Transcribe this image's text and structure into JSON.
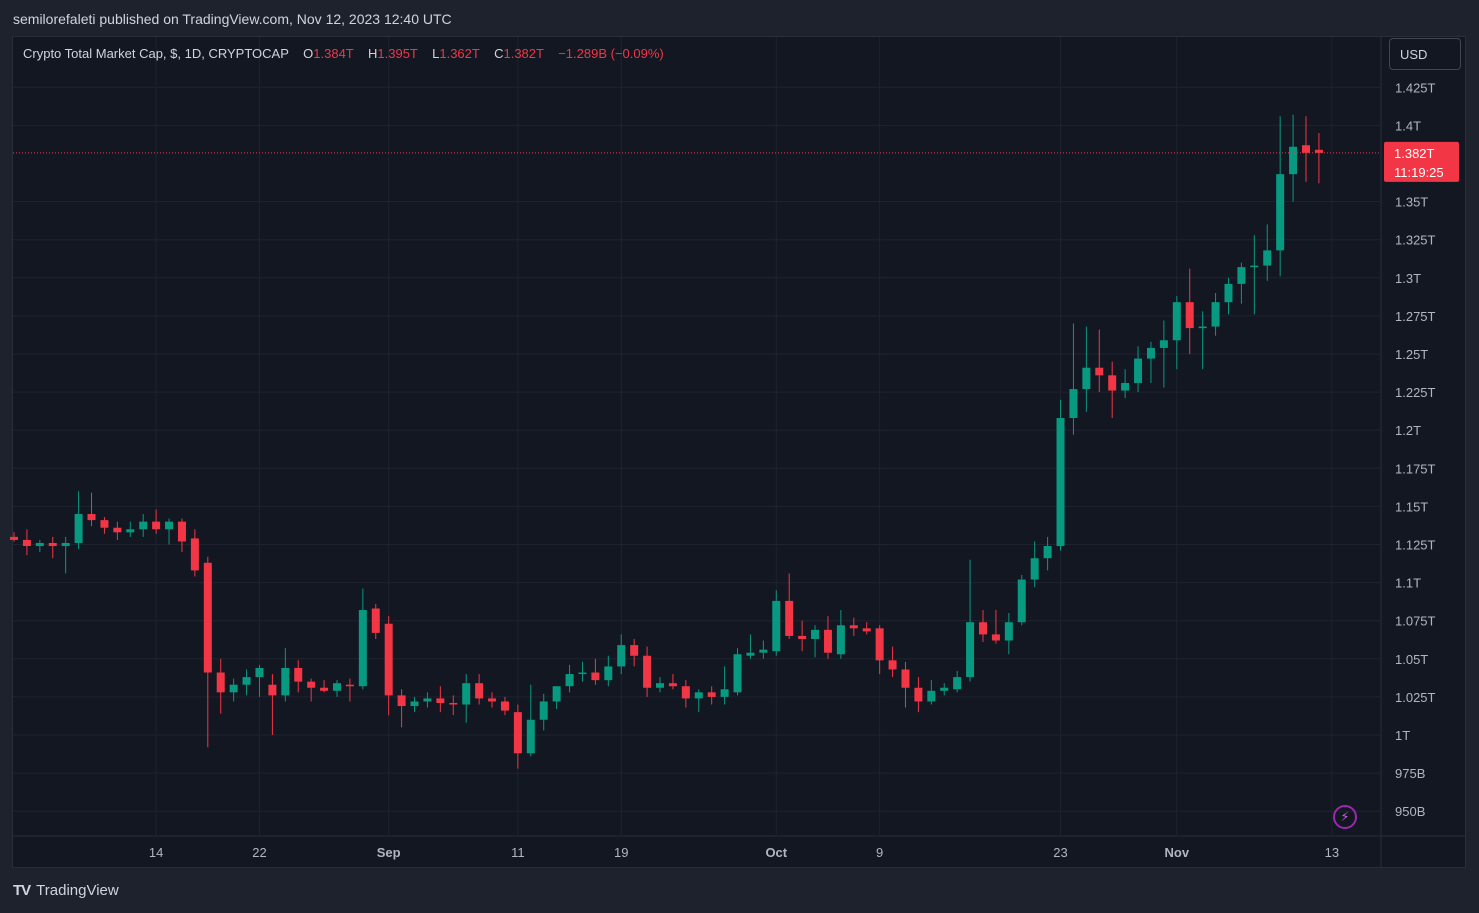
{
  "header": {
    "published": "semilorefaleti published on TradingView.com, Nov 12, 2023 12:40 UTC"
  },
  "legend": {
    "symbol": "Crypto Total Market Cap, $, 1D, CRYPTOCAP",
    "o_label": "O",
    "o_value": "1.384T",
    "h_label": "H",
    "h_value": "1.395T",
    "l_label": "L",
    "l_value": "1.362T",
    "c_label": "C",
    "c_value": "1.382T",
    "change": "−1.289B (−0.09%)"
  },
  "currency_button": "USD",
  "last_price": {
    "value": "1.382T",
    "countdown": "11:19:25",
    "color": "#f23645"
  },
  "colors": {
    "up": "#089981",
    "down": "#f23645",
    "grid": "#1f2330",
    "axis_text": "#b2b5be"
  },
  "brand": {
    "name": "TradingView"
  },
  "chart_data": {
    "type": "candlestick",
    "title": "Crypto Total Market Cap, $, 1D, CRYPTOCAP",
    "ylim": [
      935,
      1440
    ],
    "y_unit": "B",
    "y_ticks": [
      {
        "v": 950,
        "label": "950B"
      },
      {
        "v": 975,
        "label": "975B"
      },
      {
        "v": 1000,
        "label": "1T"
      },
      {
        "v": 1025,
        "label": "1.025T"
      },
      {
        "v": 1050,
        "label": "1.05T"
      },
      {
        "v": 1075,
        "label": "1.075T"
      },
      {
        "v": 1100,
        "label": "1.1T"
      },
      {
        "v": 1125,
        "label": "1.125T"
      },
      {
        "v": 1150,
        "label": "1.15T"
      },
      {
        "v": 1175,
        "label": "1.175T"
      },
      {
        "v": 1200,
        "label": "1.2T"
      },
      {
        "v": 1225,
        "label": "1.225T"
      },
      {
        "v": 1250,
        "label": "1.25T"
      },
      {
        "v": 1275,
        "label": "1.275T"
      },
      {
        "v": 1300,
        "label": "1.3T"
      },
      {
        "v": 1325,
        "label": "1.325T"
      },
      {
        "v": 1350,
        "label": "1.35T"
      },
      {
        "v": 1400,
        "label": "1.4T"
      },
      {
        "v": 1425,
        "label": "1.425T"
      }
    ],
    "x_ticks": [
      {
        "index": 11,
        "label": "14"
      },
      {
        "index": 19,
        "label": "22"
      },
      {
        "index": 29,
        "label": "Sep"
      },
      {
        "index": 39,
        "label": "11"
      },
      {
        "index": 47,
        "label": "19"
      },
      {
        "index": 59,
        "label": "Oct"
      },
      {
        "index": 67,
        "label": "9"
      },
      {
        "index": 81,
        "label": "23"
      },
      {
        "index": 90,
        "label": "Nov"
      },
      {
        "index": 102,
        "label": "13"
      }
    ],
    "candles": [
      {
        "o": 1130,
        "h": 1133,
        "l": 1127,
        "c": 1128
      },
      {
        "o": 1128,
        "h": 1135,
        "l": 1118,
        "c": 1124
      },
      {
        "o": 1124,
        "h": 1128,
        "l": 1120,
        "c": 1126
      },
      {
        "o": 1126,
        "h": 1130,
        "l": 1116,
        "c": 1124
      },
      {
        "o": 1124,
        "h": 1130,
        "l": 1106,
        "c": 1126
      },
      {
        "o": 1126,
        "h": 1160,
        "l": 1122,
        "c": 1145
      },
      {
        "o": 1145,
        "h": 1159,
        "l": 1137,
        "c": 1141
      },
      {
        "o": 1141,
        "h": 1143,
        "l": 1132,
        "c": 1136
      },
      {
        "o": 1136,
        "h": 1140,
        "l": 1128,
        "c": 1133
      },
      {
        "o": 1133,
        "h": 1140,
        "l": 1130,
        "c": 1135
      },
      {
        "o": 1135,
        "h": 1145,
        "l": 1130,
        "c": 1140
      },
      {
        "o": 1140,
        "h": 1148,
        "l": 1132,
        "c": 1135
      },
      {
        "o": 1135,
        "h": 1142,
        "l": 1125,
        "c": 1140
      },
      {
        "o": 1140,
        "h": 1142,
        "l": 1120,
        "c": 1127
      },
      {
        "o": 1129,
        "h": 1135,
        "l": 1104,
        "c": 1108
      },
      {
        "o": 1113,
        "h": 1117,
        "l": 992,
        "c": 1041
      },
      {
        "o": 1041,
        "h": 1050,
        "l": 1014,
        "c": 1028
      },
      {
        "o": 1028,
        "h": 1037,
        "l": 1022,
        "c": 1033
      },
      {
        "o": 1033,
        "h": 1043,
        "l": 1026,
        "c": 1038
      },
      {
        "o": 1038,
        "h": 1046,
        "l": 1025,
        "c": 1044
      },
      {
        "o": 1033,
        "h": 1040,
        "l": 1000,
        "c": 1026
      },
      {
        "o": 1026,
        "h": 1057,
        "l": 1022,
        "c": 1044
      },
      {
        "o": 1044,
        "h": 1049,
        "l": 1028,
        "c": 1035
      },
      {
        "o": 1035,
        "h": 1037,
        "l": 1022,
        "c": 1031
      },
      {
        "o": 1031,
        "h": 1036,
        "l": 1028,
        "c": 1029
      },
      {
        "o": 1029,
        "h": 1036,
        "l": 1025,
        "c": 1034
      },
      {
        "o": 1033,
        "h": 1037,
        "l": 1022,
        "c": 1032
      },
      {
        "o": 1032,
        "h": 1096,
        "l": 1030,
        "c": 1082
      },
      {
        "o": 1083,
        "h": 1086,
        "l": 1063,
        "c": 1067
      },
      {
        "o": 1073,
        "h": 1078,
        "l": 1013,
        "c": 1026
      },
      {
        "o": 1026,
        "h": 1030,
        "l": 1005,
        "c": 1019
      },
      {
        "o": 1019,
        "h": 1025,
        "l": 1015,
        "c": 1022
      },
      {
        "o": 1022,
        "h": 1028,
        "l": 1018,
        "c": 1024
      },
      {
        "o": 1024,
        "h": 1032,
        "l": 1015,
        "c": 1021
      },
      {
        "o": 1021,
        "h": 1026,
        "l": 1013,
        "c": 1020
      },
      {
        "o": 1020,
        "h": 1040,
        "l": 1008,
        "c": 1034
      },
      {
        "o": 1034,
        "h": 1040,
        "l": 1020,
        "c": 1024
      },
      {
        "o": 1024,
        "h": 1028,
        "l": 1018,
        "c": 1022
      },
      {
        "o": 1022,
        "h": 1025,
        "l": 1013,
        "c": 1016
      },
      {
        "o": 1015,
        "h": 1020,
        "l": 978,
        "c": 988
      },
      {
        "o": 988,
        "h": 1033,
        "l": 986,
        "c": 1010
      },
      {
        "o": 1010,
        "h": 1027,
        "l": 1003,
        "c": 1022
      },
      {
        "o": 1022,
        "h": 1032,
        "l": 1017,
        "c": 1032
      },
      {
        "o": 1032,
        "h": 1046,
        "l": 1028,
        "c": 1040
      },
      {
        "o": 1040,
        "h": 1048,
        "l": 1035,
        "c": 1041
      },
      {
        "o": 1041,
        "h": 1050,
        "l": 1033,
        "c": 1036
      },
      {
        "o": 1036,
        "h": 1052,
        "l": 1032,
        "c": 1045
      },
      {
        "o": 1045,
        "h": 1066,
        "l": 1040,
        "c": 1059
      },
      {
        "o": 1059,
        "h": 1063,
        "l": 1045,
        "c": 1052
      },
      {
        "o": 1052,
        "h": 1058,
        "l": 1025,
        "c": 1031
      },
      {
        "o": 1031,
        "h": 1038,
        "l": 1028,
        "c": 1034
      },
      {
        "o": 1034,
        "h": 1040,
        "l": 1030,
        "c": 1032
      },
      {
        "o": 1032,
        "h": 1036,
        "l": 1018,
        "c": 1024
      },
      {
        "o": 1024,
        "h": 1030,
        "l": 1015,
        "c": 1028
      },
      {
        "o": 1028,
        "h": 1032,
        "l": 1020,
        "c": 1025
      },
      {
        "o": 1025,
        "h": 1045,
        "l": 1020,
        "c": 1030
      },
      {
        "o": 1028,
        "h": 1057,
        "l": 1026,
        "c": 1053
      },
      {
        "o": 1052,
        "h": 1066,
        "l": 1050,
        "c": 1054
      },
      {
        "o": 1054,
        "h": 1062,
        "l": 1050,
        "c": 1056
      },
      {
        "o": 1055,
        "h": 1095,
        "l": 1052,
        "c": 1088
      },
      {
        "o": 1088,
        "h": 1106,
        "l": 1063,
        "c": 1065
      },
      {
        "o": 1065,
        "h": 1075,
        "l": 1055,
        "c": 1063
      },
      {
        "o": 1063,
        "h": 1072,
        "l": 1051,
        "c": 1069
      },
      {
        "o": 1069,
        "h": 1078,
        "l": 1050,
        "c": 1054
      },
      {
        "o": 1053,
        "h": 1082,
        "l": 1050,
        "c": 1072
      },
      {
        "o": 1072,
        "h": 1077,
        "l": 1065,
        "c": 1070
      },
      {
        "o": 1070,
        "h": 1074,
        "l": 1066,
        "c": 1068
      },
      {
        "o": 1070,
        "h": 1072,
        "l": 1040,
        "c": 1049
      },
      {
        "o": 1049,
        "h": 1058,
        "l": 1038,
        "c": 1043
      },
      {
        "o": 1043,
        "h": 1048,
        "l": 1018,
        "c": 1031
      },
      {
        "o": 1031,
        "h": 1038,
        "l": 1015,
        "c": 1022
      },
      {
        "o": 1022,
        "h": 1036,
        "l": 1020,
        "c": 1029
      },
      {
        "o": 1029,
        "h": 1034,
        "l": 1026,
        "c": 1031
      },
      {
        "o": 1030,
        "h": 1042,
        "l": 1028,
        "c": 1038
      },
      {
        "o": 1038,
        "h": 1115,
        "l": 1035,
        "c": 1074
      },
      {
        "o": 1074,
        "h": 1082,
        "l": 1061,
        "c": 1066
      },
      {
        "o": 1066,
        "h": 1082,
        "l": 1060,
        "c": 1062
      },
      {
        "o": 1062,
        "h": 1080,
        "l": 1053,
        "c": 1074
      },
      {
        "o": 1074,
        "h": 1105,
        "l": 1072,
        "c": 1102
      },
      {
        "o": 1102,
        "h": 1127,
        "l": 1097,
        "c": 1116
      },
      {
        "o": 1116,
        "h": 1130,
        "l": 1108,
        "c": 1124
      },
      {
        "o": 1124,
        "h": 1220,
        "l": 1121,
        "c": 1208
      },
      {
        "o": 1208,
        "h": 1270,
        "l": 1197,
        "c": 1227
      },
      {
        "o": 1227,
        "h": 1268,
        "l": 1212,
        "c": 1241
      },
      {
        "o": 1241,
        "h": 1266,
        "l": 1225,
        "c": 1236
      },
      {
        "o": 1236,
        "h": 1245,
        "l": 1208,
        "c": 1226
      },
      {
        "o": 1226,
        "h": 1240,
        "l": 1221,
        "c": 1231
      },
      {
        "o": 1231,
        "h": 1255,
        "l": 1225,
        "c": 1247
      },
      {
        "o": 1247,
        "h": 1258,
        "l": 1231,
        "c": 1254
      },
      {
        "o": 1254,
        "h": 1272,
        "l": 1228,
        "c": 1259
      },
      {
        "o": 1259,
        "h": 1288,
        "l": 1240,
        "c": 1284
      },
      {
        "o": 1284,
        "h": 1306,
        "l": 1250,
        "c": 1267
      },
      {
        "o": 1267,
        "h": 1278,
        "l": 1240,
        "c": 1268
      },
      {
        "o": 1268,
        "h": 1290,
        "l": 1262,
        "c": 1284
      },
      {
        "o": 1284,
        "h": 1300,
        "l": 1276,
        "c": 1296
      },
      {
        "o": 1296,
        "h": 1310,
        "l": 1283,
        "c": 1307
      },
      {
        "o": 1307,
        "h": 1328,
        "l": 1276,
        "c": 1308
      },
      {
        "o": 1308,
        "h": 1335,
        "l": 1298,
        "c": 1318
      },
      {
        "o": 1318,
        "h": 1406,
        "l": 1301,
        "c": 1368
      },
      {
        "o": 1368,
        "h": 1407,
        "l": 1350,
        "c": 1386
      },
      {
        "o": 1387,
        "h": 1406,
        "l": 1363,
        "c": 1382
      },
      {
        "o": 1384,
        "h": 1395,
        "l": 1362,
        "c": 1382
      }
    ]
  }
}
